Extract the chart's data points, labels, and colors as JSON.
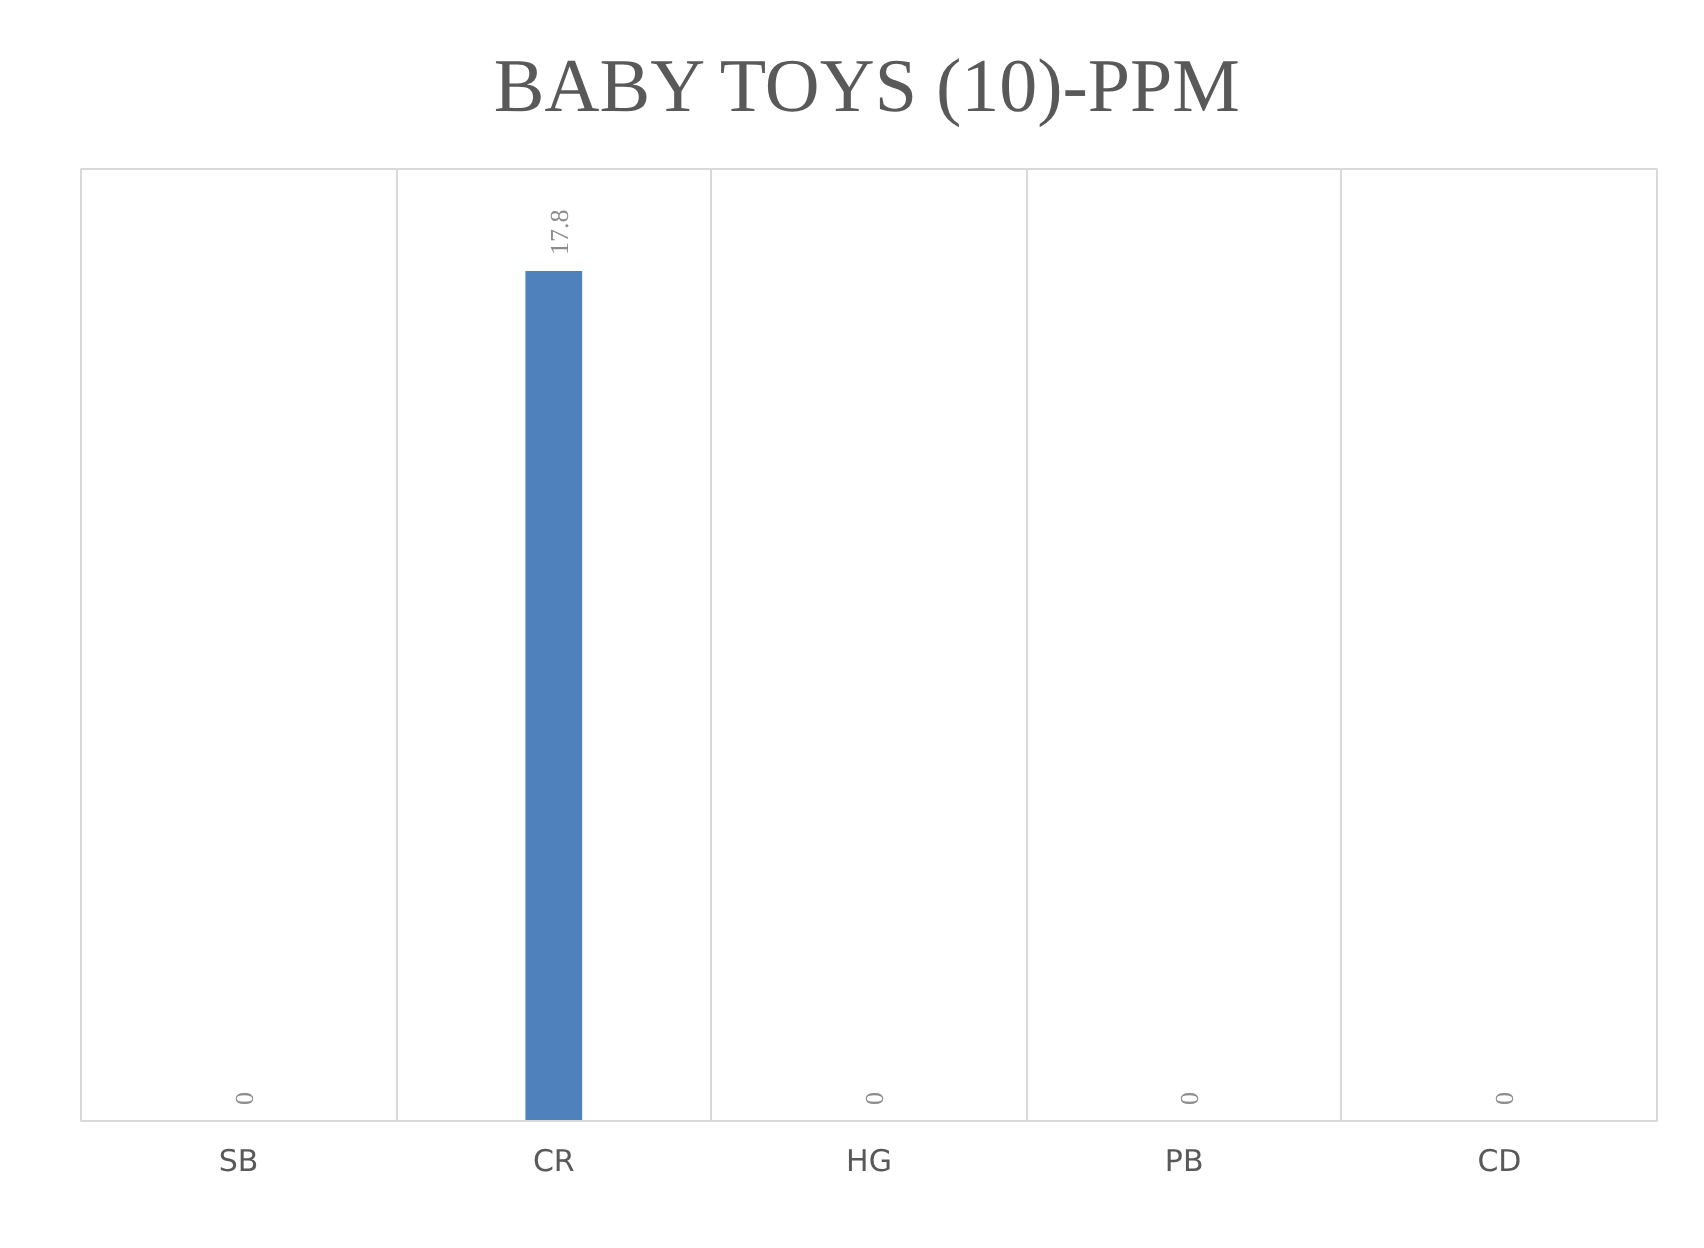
{
  "chart_data": {
    "type": "bar",
    "title": "BABY TOYS (10)-PPM",
    "categories": [
      "SB",
      "CR",
      "HG",
      "PB",
      "CD"
    ],
    "values": [
      0,
      17.8,
      0,
      0,
      0
    ],
    "color": "#4f81bd",
    "data_labels": true,
    "grid": "x"
  }
}
